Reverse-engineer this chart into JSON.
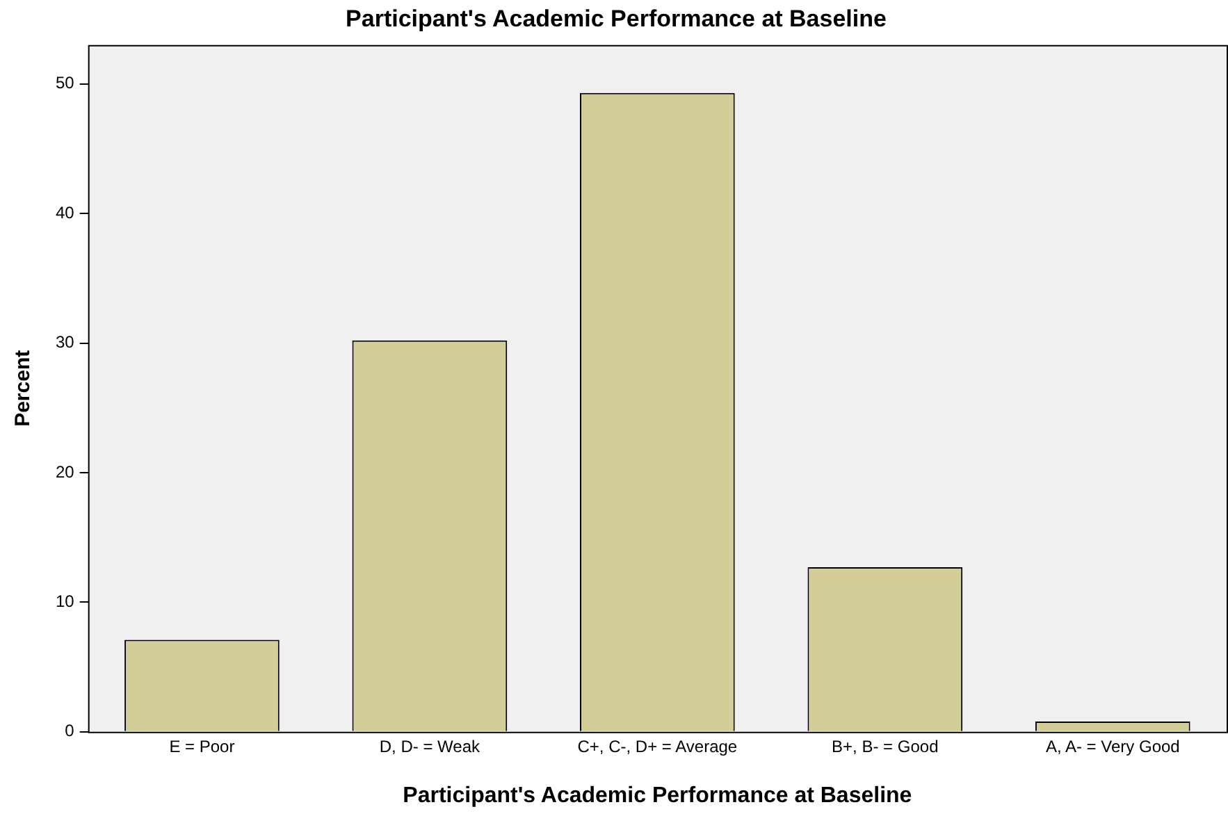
{
  "chart_data": {
    "type": "bar",
    "title": "Participant's Academic Performance at Baseline",
    "xlabel": "Participant's Academic Performance at Baseline",
    "ylabel": "Percent",
    "categories": [
      "E = Poor",
      "D, D- = Weak",
      "C+, C-, D+ = Average",
      "B+, B- = Good",
      "A, A- = Very Good"
    ],
    "values": [
      7.1,
      30.2,
      49.3,
      12.7,
      0.8
    ],
    "color": "#d3ce97",
    "ylim": [
      0,
      53
    ],
    "yticks": [
      0,
      10,
      20,
      30,
      40,
      50
    ],
    "grid": false,
    "legend": false
  }
}
